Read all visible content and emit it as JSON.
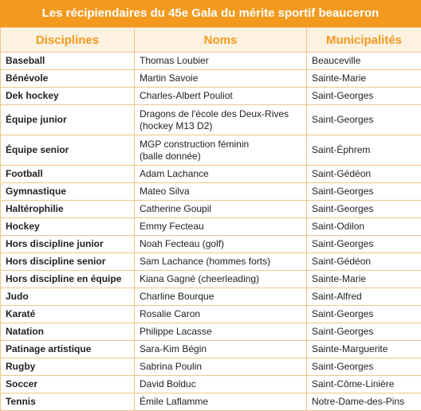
{
  "header": {
    "title": "Les récipiendaires du 45e Gala du mérite sportif beauceron"
  },
  "table": {
    "columns": [
      "Disciplines",
      "Noms",
      "Municipalités"
    ],
    "rows": [
      [
        "Baseball",
        "Thomas Loubier",
        "Beauceville"
      ],
      [
        "Bénévole",
        "Martin Savoie",
        "Sainte-Marie"
      ],
      [
        "Dek hockey",
        "Charles-Albert Pouliot",
        "Saint-Georges"
      ],
      [
        "Équipe junior",
        "Dragons de l'école des Deux-Rives\n(hockey M13 D2)",
        "Saint-Georges"
      ],
      [
        "Équipe senior",
        "MGP construction féminin\n(balle donnée)",
        "Saint-Éphrem"
      ],
      [
        "Football",
        "Adam Lachance",
        "Saint-Gédéon"
      ],
      [
        "Gymnastique",
        "Mateo Silva",
        "Saint-Georges"
      ],
      [
        "Haltérophilie",
        "Catherine Goupil",
        "Saint-Georges"
      ],
      [
        "Hockey",
        "Emmy Fecteau",
        "Saint-Odilon"
      ],
      [
        "Hors discipline junior",
        "Noah Fecteau (golf)",
        "Saint-Georges"
      ],
      [
        "Hors discipline senior",
        "Sam Lachance (hommes forts)",
        "Saint-Gédéon"
      ],
      [
        "Hors discipline en équipe",
        "Kiana Gagné (cheerleading)",
        "Sainte-Marie"
      ],
      [
        "Judo",
        "Charline Bourque",
        "Saint-Alfred"
      ],
      [
        "Karaté",
        "Rosalie Caron",
        "Saint-Georges"
      ],
      [
        "Natation",
        "Philippe Lacasse",
        "Saint-Georges"
      ],
      [
        "Patinage artistique",
        "Sara-Kim Bégin",
        "Sainte-Marguerite"
      ],
      [
        "Rugby",
        "Sabrina Poulin",
        "Saint-Georges"
      ],
      [
        "Soccer",
        "David Bolduc",
        "Saint-Côme-Linière"
      ],
      [
        "Tennis",
        "Émile Laflamme",
        "Notre-Dame-des-Pins"
      ]
    ]
  }
}
